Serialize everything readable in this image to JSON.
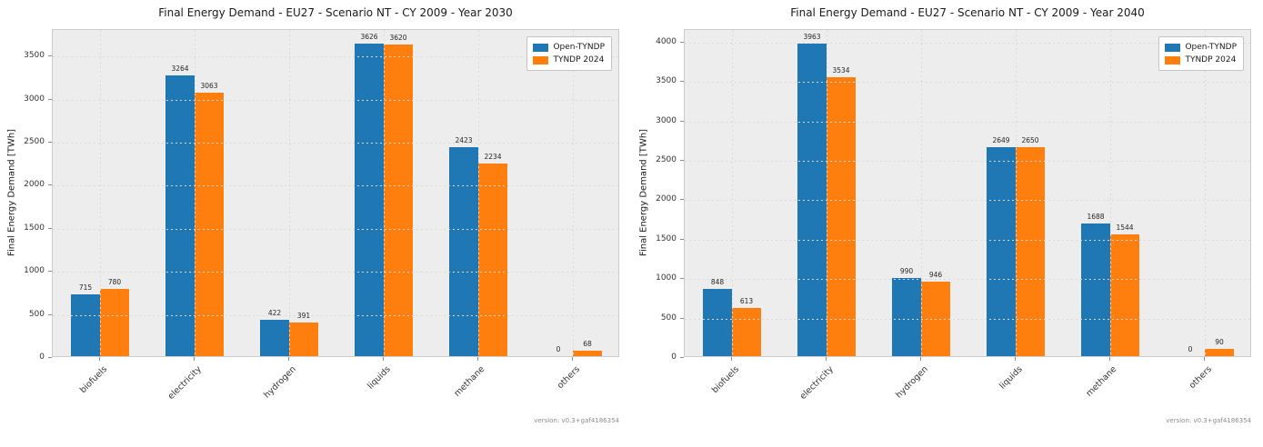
{
  "colors": {
    "open_tyndp_blue": "#1f77b4",
    "tyndp_2024_orange": "#ff7f0e",
    "plot_background": "#ededed",
    "figure_background": "#ffffff",
    "gridline": "#d9d9d9"
  },
  "legend": {
    "entries": [
      {
        "label": "Open-TYNDP",
        "color": "#1f77b4"
      },
      {
        "label": "TYNDP 2024",
        "color": "#ff7f0e"
      }
    ],
    "position": "upper right"
  },
  "chart_data": [
    {
      "type": "bar",
      "title": "Final Energy Demand - EU27 - Scenario NT - CY 2009 - Year 2030",
      "xlabel": "",
      "ylabel": "Final Energy Demand [TWh]",
      "categories": [
        "biofuels",
        "electricity",
        "hydrogen",
        "liquids",
        "methane",
        "others"
      ],
      "series": [
        {
          "name": "Open-TYNDP",
          "color": "#1f77b4",
          "values": [
            715,
            3264,
            422,
            3626,
            2423,
            0
          ]
        },
        {
          "name": "TYNDP 2024",
          "color": "#ff7f0e",
          "values": [
            780,
            3063,
            391,
            3620,
            2234,
            68
          ]
        }
      ],
      "yticks": [
        0,
        500,
        1000,
        1500,
        2000,
        2500,
        3000,
        3500
      ],
      "ylim": [
        0,
        3807
      ],
      "grid": true,
      "legend_position": "upper right",
      "version": "version: v0.3+gaf4186354"
    },
    {
      "type": "bar",
      "title": "Final Energy Demand - EU27 - Scenario NT - CY 2009 - Year 2040",
      "xlabel": "",
      "ylabel": "Final Energy Demand [TWh]",
      "categories": [
        "biofuels",
        "electricity",
        "hydrogen",
        "liquids",
        "methane",
        "others"
      ],
      "series": [
        {
          "name": "Open-TYNDP",
          "color": "#1f77b4",
          "values": [
            848,
            3963,
            990,
            2649,
            1688,
            0
          ]
        },
        {
          "name": "TYNDP 2024",
          "color": "#ff7f0e",
          "values": [
            613,
            3534,
            946,
            2650,
            1544,
            90
          ]
        }
      ],
      "yticks": [
        0,
        500,
        1000,
        1500,
        2000,
        2500,
        3000,
        3500,
        4000
      ],
      "ylim": [
        0,
        4161
      ],
      "grid": true,
      "legend_position": "upper right",
      "version": "version: v0.3+gaf4186354"
    }
  ]
}
